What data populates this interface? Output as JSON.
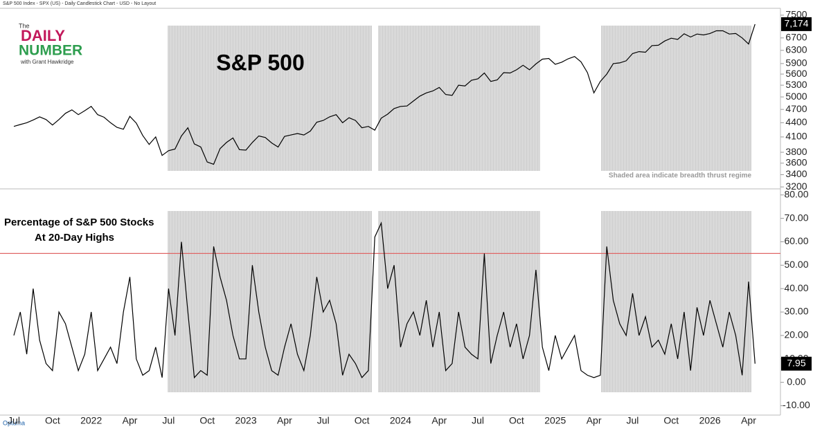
{
  "header": "S&P 500 Index - SPX (US) - Daily Candlestick Chart - USD - No Layout",
  "logo": {
    "the": "The",
    "daily": "DAILY",
    "number": "NUMBER",
    "byline": "with Grant Hawkridge"
  },
  "footer": "Optuma",
  "chart_data": [
    {
      "type": "line",
      "title": "S&P 500",
      "annotation": "Shaded area indicate breadth thrust regime",
      "log_scale": true,
      "ylim": [
        3180,
        7760
      ],
      "yticks": [
        3200,
        3400,
        3600,
        3800,
        4100,
        4400,
        4700,
        5000,
        5300,
        5600,
        5900,
        6300,
        6700,
        7500
      ],
      "badge": "7,174",
      "series": [
        {
          "name": "S&P 500 Index",
          "color": "#000000",
          "values": [
            4320,
            4360,
            4400,
            4460,
            4530,
            4470,
            4350,
            4470,
            4610,
            4690,
            4580,
            4670,
            4770,
            4580,
            4520,
            4400,
            4300,
            4260,
            4540,
            4390,
            4130,
            3950,
            4100,
            3740,
            3830,
            3860,
            4120,
            4290,
            3960,
            3900,
            3620,
            3580,
            3870,
            3990,
            4080,
            3850,
            3840,
            3990,
            4120,
            4090,
            3980,
            3900,
            4110,
            4140,
            4170,
            4140,
            4220,
            4410,
            4450,
            4530,
            4580,
            4400,
            4510,
            4450,
            4290,
            4320,
            4240,
            4500,
            4590,
            4720,
            4770,
            4780,
            4900,
            5020,
            5100,
            5150,
            5240,
            5060,
            5040,
            5300,
            5280,
            5430,
            5470,
            5630,
            5400,
            5440,
            5640,
            5630,
            5720,
            5850,
            5720,
            5890,
            6030,
            6050,
            5880,
            5940,
            6040,
            6110,
            5950,
            5640,
            5100,
            5400,
            5600,
            5900,
            5920,
            5980,
            6200,
            6260,
            6240,
            6450,
            6460,
            6600,
            6690,
            6650,
            6840,
            6730,
            6830,
            6800,
            6850,
            6940,
            6940,
            6830,
            6850,
            6700,
            6500,
            7174
          ]
        }
      ]
    },
    {
      "type": "line",
      "title": "Percentage of S&P 500 Stocks At 20-Day Highs",
      "ylim": [
        -14,
        82
      ],
      "yticks": [
        {
          "value": -10,
          "label": "-10.00"
        },
        {
          "value": 0,
          "label": "0.00"
        },
        {
          "value": 10,
          "label": "10.00"
        },
        {
          "value": 20,
          "label": "20.00"
        },
        {
          "value": 30,
          "label": "30.00"
        },
        {
          "value": 40,
          "label": "40.00"
        },
        {
          "value": 50,
          "label": "50.00"
        },
        {
          "value": 60,
          "label": "60.00"
        },
        {
          "value": 70,
          "label": "70.00"
        },
        {
          "value": 80,
          "label": "80.00"
        }
      ],
      "threshold": {
        "value": 55,
        "color": "#e06666"
      },
      "badge": "7.95",
      "categories": [
        "Jul",
        null,
        null,
        null,
        null,
        null,
        "Oct",
        null,
        null,
        null,
        null,
        null,
        "2022",
        null,
        null,
        null,
        null,
        null,
        "Apr",
        null,
        null,
        null,
        null,
        null,
        "Jul",
        null,
        null,
        null,
        null,
        null,
        "Oct",
        null,
        null,
        null,
        null,
        null,
        "2023",
        null,
        null,
        null,
        null,
        null,
        "Apr",
        null,
        null,
        null,
        null,
        null,
        "Jul",
        null,
        null,
        null,
        null,
        null,
        "Oct",
        null,
        null,
        null,
        null,
        null,
        "2024",
        null,
        null,
        null,
        null,
        null,
        "Apr",
        null,
        null,
        null,
        null,
        null,
        "Jul",
        null,
        null,
        null,
        null,
        null,
        "Oct",
        null,
        null,
        null,
        null,
        null,
        "2025",
        null,
        null,
        null,
        null,
        null,
        "Apr",
        null,
        null,
        null,
        null,
        null,
        "Jul",
        null,
        null,
        null,
        null,
        null,
        "Oct",
        null,
        null,
        null,
        null,
        null,
        "2026",
        null,
        null,
        null,
        null,
        null,
        "Apr",
        null
      ],
      "series": [
        {
          "name": "Percentage at 20-Day Highs",
          "color": "#000000",
          "values": [
            20,
            30,
            12,
            40,
            18,
            8,
            5,
            30,
            25,
            15,
            5,
            12,
            30,
            5,
            10,
            15,
            8,
            30,
            45,
            10,
            3,
            5,
            15,
            2,
            40,
            20,
            60,
            30,
            2,
            5,
            3,
            58,
            45,
            35,
            20,
            10,
            10,
            50,
            30,
            15,
            5,
            3,
            15,
            25,
            12,
            5,
            20,
            45,
            30,
            35,
            25,
            3,
            12,
            8,
            2,
            5,
            62,
            68,
            40,
            50,
            15,
            25,
            30,
            20,
            35,
            15,
            30,
            5,
            8,
            30,
            15,
            12,
            10,
            55,
            8,
            20,
            30,
            15,
            25,
            10,
            20,
            48,
            15,
            5,
            20,
            10,
            15,
            20,
            5,
            3,
            2,
            3,
            58,
            35,
            25,
            20,
            38,
            20,
            28,
            15,
            18,
            12,
            25,
            10,
            30,
            5,
            32,
            20,
            35,
            25,
            15,
            30,
            20,
            3,
            43,
            7.95
          ]
        }
      ]
    }
  ]
}
